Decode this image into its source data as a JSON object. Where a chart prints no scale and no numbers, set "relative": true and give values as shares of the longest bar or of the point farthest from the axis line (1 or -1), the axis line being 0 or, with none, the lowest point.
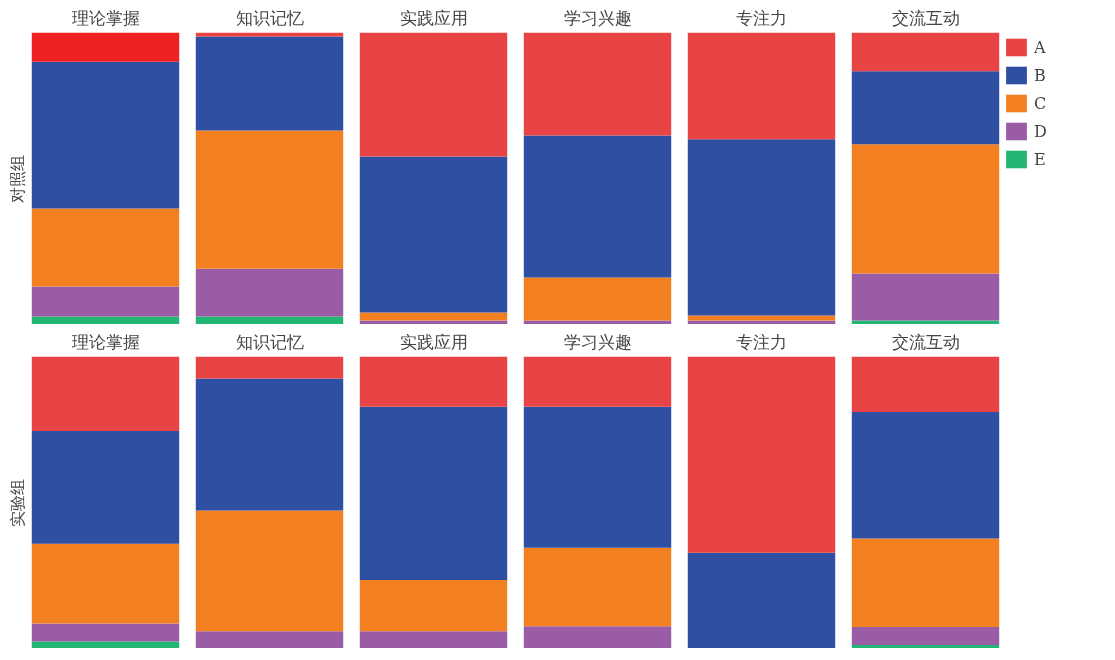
{
  "chart_data": [
    {
      "type": "bar",
      "stacked": true,
      "relative": true,
      "tick_labels": false,
      "title": "理论掌握",
      "ylabel": "对照组",
      "categories": [
        null
      ],
      "series": [
        {
          "color": "#22b573",
          "values": [
            0.027
          ]
        },
        {
          "color": "#9b5ca6",
          "values": [
            0.103
          ]
        },
        {
          "color": "#f28021",
          "values": [
            0.267
          ]
        },
        {
          "color": "#2f4fa2",
          "values": [
            0.503
          ]
        },
        {
          "color": "#ee2222",
          "values": [
            0.1
          ]
        }
      ]
    },
    {
      "type": "bar",
      "stacked": true,
      "relative": true,
      "tick_labels": false,
      "title": "知识记忆",
      "categories": [
        null
      ],
      "series": [
        {
          "color": "#22b573",
          "values": [
            0.027
          ]
        },
        {
          "color": "#9b5ca6",
          "values": [
            0.164
          ]
        },
        {
          "color": "#f28021",
          "values": [
            0.473
          ]
        },
        {
          "color": "#2f4fa2",
          "values": [
            0.322
          ]
        },
        {
          "color": "#e84445",
          "values": [
            0.014
          ]
        }
      ]
    },
    {
      "type": "bar",
      "stacked": true,
      "relative": true,
      "tick_labels": false,
      "title": "实践应用",
      "categories": [
        null
      ],
      "series": [
        {
          "color": "#9b5ca6",
          "values": [
            0.014
          ]
        },
        {
          "color": "#f28021",
          "values": [
            0.027
          ]
        },
        {
          "color": "#2f4fa2",
          "values": [
            0.534
          ]
        },
        {
          "color": "#e84445",
          "values": [
            0.425
          ]
        }
      ]
    },
    {
      "type": "bar",
      "stacked": true,
      "relative": true,
      "tick_labels": false,
      "title": "学习兴趣",
      "categories": [
        null
      ],
      "series": [
        {
          "color": "#9b5ca6",
          "values": [
            0.014
          ]
        },
        {
          "color": "#f28021",
          "values": [
            0.147
          ]
        },
        {
          "color": "#2f4fa2",
          "values": [
            0.486
          ]
        },
        {
          "color": "#e84445",
          "values": [
            0.353
          ]
        }
      ]
    },
    {
      "type": "bar",
      "stacked": true,
      "relative": true,
      "tick_labels": false,
      "title": "专注力",
      "categories": [
        null
      ],
      "series": [
        {
          "color": "#9b5ca6",
          "values": [
            0.014
          ]
        },
        {
          "color": "#f28021",
          "values": [
            0.017
          ]
        },
        {
          "color": "#2f4fa2",
          "values": [
            0.603
          ]
        },
        {
          "color": "#e84445",
          "values": [
            0.366
          ]
        }
      ]
    },
    {
      "type": "bar",
      "stacked": true,
      "relative": true,
      "tick_labels": false,
      "title": "交流互动",
      "legend": "right",
      "categories": [
        null
      ],
      "series": [
        {
          "name": "E",
          "color": "#22b573",
          "values": [
            0.014
          ]
        },
        {
          "name": "D",
          "color": "#9b5ca6",
          "values": [
            0.161
          ]
        },
        {
          "name": "C",
          "color": "#f28021",
          "values": [
            0.442
          ]
        },
        {
          "name": "B",
          "color": "#2f4fa2",
          "values": [
            0.25
          ]
        },
        {
          "name": "A",
          "color": "#e84445",
          "values": [
            0.133
          ]
        }
      ]
    },
    {
      "type": "bar",
      "stacked": true,
      "relative": true,
      "tick_labels": false,
      "title": "理论掌握",
      "ylabel": "实验组",
      "categories": [
        null
      ],
      "series": [
        {
          "color": "#22b573",
          "values": [
            0.024
          ]
        },
        {
          "color": "#9b5ca6",
          "values": [
            0.062
          ]
        },
        {
          "color": "#f28021",
          "values": [
            0.273
          ]
        },
        {
          "color": "#2f4fa2",
          "values": [
            0.386
          ]
        },
        {
          "color": "#e84445",
          "values": [
            0.255
          ]
        }
      ]
    },
    {
      "type": "bar",
      "stacked": true,
      "relative": true,
      "tick_labels": false,
      "title": "知识记忆",
      "categories": [
        null
      ],
      "series": [
        {
          "color": "#9b5ca6",
          "values": [
            0.059
          ]
        },
        {
          "color": "#f28021",
          "values": [
            0.414
          ]
        },
        {
          "color": "#2f4fa2",
          "values": [
            0.452
          ]
        },
        {
          "color": "#e84445",
          "values": [
            0.075
          ]
        }
      ]
    },
    {
      "type": "bar",
      "stacked": true,
      "relative": true,
      "tick_labels": false,
      "title": "实践应用",
      "categories": [
        null
      ],
      "series": [
        {
          "color": "#9b5ca6",
          "values": [
            0.059
          ]
        },
        {
          "color": "#f28021",
          "values": [
            0.176
          ]
        },
        {
          "color": "#2f4fa2",
          "values": [
            0.593
          ]
        },
        {
          "color": "#e84445",
          "values": [
            0.172
          ]
        }
      ]
    },
    {
      "type": "bar",
      "stacked": true,
      "relative": true,
      "tick_labels": false,
      "title": "学习兴趣",
      "categories": [
        null
      ],
      "series": [
        {
          "color": "#9b5ca6",
          "values": [
            0.076
          ]
        },
        {
          "color": "#f28021",
          "values": [
            0.269
          ]
        },
        {
          "color": "#2f4fa2",
          "values": [
            0.483
          ]
        },
        {
          "color": "#e84445",
          "values": [
            0.172
          ]
        }
      ]
    },
    {
      "type": "bar",
      "stacked": true,
      "relative": true,
      "tick_labels": false,
      "title": "专注力",
      "categories": [
        null
      ],
      "series": [
        {
          "color": "#2f4fa2",
          "values": [
            0.328
          ]
        },
        {
          "color": "#e84445",
          "values": [
            0.672
          ]
        }
      ]
    },
    {
      "type": "bar",
      "stacked": true,
      "relative": true,
      "tick_labels": false,
      "title": "交流互动",
      "categories": [
        null
      ],
      "series": [
        {
          "color": "#22b573",
          "values": [
            0.012
          ]
        },
        {
          "color": "#9b5ca6",
          "values": [
            0.062
          ]
        },
        {
          "color": "#f28021",
          "values": [
            0.303
          ]
        },
        {
          "color": "#2f4fa2",
          "values": [
            0.433
          ]
        },
        {
          "color": "#e84445",
          "values": [
            0.19
          ]
        }
      ]
    }
  ]
}
